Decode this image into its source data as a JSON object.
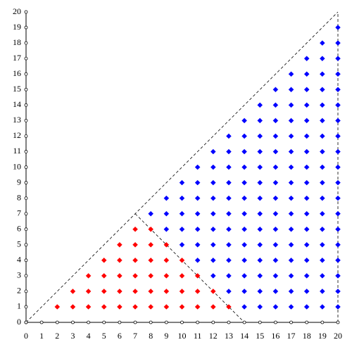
{
  "chart_data": {
    "type": "scatter",
    "xlim": [
      0,
      20
    ],
    "ylim": [
      0,
      20
    ],
    "xticks": [
      0,
      1,
      2,
      3,
      4,
      5,
      6,
      7,
      8,
      9,
      10,
      11,
      12,
      13,
      14,
      15,
      16,
      17,
      18,
      19,
      20
    ],
    "yticks": [
      0,
      1,
      2,
      3,
      4,
      5,
      6,
      7,
      8,
      9,
      10,
      11,
      12,
      13,
      14,
      15,
      16,
      17,
      18,
      19,
      20
    ],
    "reference_lines": [
      {
        "x": [
          0,
          20
        ],
        "y": [
          0,
          20
        ]
      },
      {
        "x": [
          7,
          14
        ],
        "y": [
          7,
          0
        ]
      },
      {
        "x": [
          20,
          20
        ],
        "y": [
          0,
          20
        ]
      }
    ],
    "series": [
      {
        "color": "#ff0000",
        "x": [
          2,
          3,
          4,
          5,
          6,
          7,
          8,
          9,
          10,
          11,
          12,
          13,
          3,
          4,
          5,
          6,
          7,
          8,
          9,
          10,
          11,
          12,
          4,
          5,
          6,
          7,
          8,
          9,
          10,
          11,
          5,
          6,
          7,
          8,
          9,
          10,
          6,
          7,
          8,
          9,
          7,
          8
        ],
        "y": [
          1,
          1,
          1,
          1,
          1,
          1,
          1,
          1,
          1,
          1,
          1,
          1,
          2,
          2,
          2,
          2,
          2,
          2,
          2,
          2,
          2,
          2,
          3,
          3,
          3,
          3,
          3,
          3,
          3,
          3,
          4,
          4,
          4,
          4,
          4,
          4,
          5,
          5,
          5,
          5,
          6,
          6
        ]
      },
      {
        "color": "#0000ff",
        "x": [
          14,
          15,
          16,
          17,
          18,
          19,
          20,
          13,
          14,
          15,
          16,
          17,
          18,
          19,
          20,
          12,
          13,
          14,
          15,
          16,
          17,
          18,
          19,
          20,
          11,
          12,
          13,
          14,
          15,
          16,
          17,
          18,
          19,
          20,
          10,
          11,
          12,
          13,
          14,
          15,
          16,
          17,
          18,
          19,
          20,
          9,
          10,
          11,
          12,
          13,
          14,
          15,
          16,
          17,
          18,
          19,
          20,
          8,
          9,
          10,
          11,
          12,
          13,
          14,
          15,
          16,
          17,
          18,
          19,
          20,
          9,
          10,
          11,
          12,
          13,
          14,
          15,
          16,
          17,
          18,
          19,
          20,
          10,
          11,
          12,
          13,
          14,
          15,
          16,
          17,
          18,
          19,
          20,
          11,
          12,
          13,
          14,
          15,
          16,
          17,
          18,
          19,
          20,
          12,
          13,
          14,
          15,
          16,
          17,
          18,
          19,
          20,
          13,
          14,
          15,
          16,
          17,
          18,
          19,
          20,
          14,
          15,
          16,
          17,
          18,
          19,
          20,
          15,
          16,
          17,
          18,
          19,
          20,
          16,
          17,
          18,
          19,
          20,
          17,
          18,
          19,
          20,
          18,
          19,
          20,
          19,
          20,
          20
        ],
        "y": [
          1,
          1,
          1,
          1,
          1,
          1,
          1,
          2,
          2,
          2,
          2,
          2,
          2,
          2,
          2,
          3,
          3,
          3,
          3,
          3,
          3,
          3,
          3,
          3,
          4,
          4,
          4,
          4,
          4,
          4,
          4,
          4,
          4,
          4,
          5,
          5,
          5,
          5,
          5,
          5,
          5,
          5,
          5,
          5,
          5,
          6,
          6,
          6,
          6,
          6,
          6,
          6,
          6,
          6,
          6,
          6,
          6,
          7,
          7,
          7,
          7,
          7,
          7,
          7,
          7,
          7,
          7,
          7,
          7,
          7,
          8,
          8,
          8,
          8,
          8,
          8,
          8,
          8,
          8,
          8,
          8,
          8,
          9,
          9,
          9,
          9,
          9,
          9,
          9,
          9,
          9,
          9,
          9,
          10,
          10,
          10,
          10,
          10,
          10,
          10,
          10,
          10,
          10,
          11,
          11,
          11,
          11,
          11,
          11,
          11,
          11,
          11,
          12,
          12,
          12,
          12,
          12,
          12,
          12,
          12,
          13,
          13,
          13,
          13,
          13,
          13,
          13,
          14,
          14,
          14,
          14,
          14,
          14,
          15,
          15,
          15,
          15,
          15,
          16,
          16,
          16,
          16,
          17,
          17,
          17,
          18,
          18,
          19
        ]
      }
    ]
  }
}
